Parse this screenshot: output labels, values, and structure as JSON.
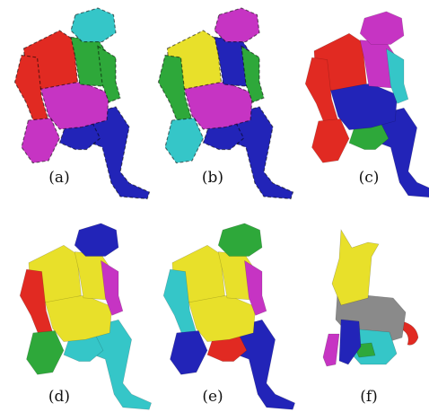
{
  "panels": [
    {
      "id": "a",
      "caption": "(a)",
      "style": "coarse-human",
      "colors": {
        "head": "#35c6c8",
        "torso_left": "#e12a22",
        "torso_right": "#2ea83a",
        "hips": "#c634c3",
        "leg": "#2224b8",
        "arm_l": "#e12a22",
        "hand_l": "#c634c3",
        "arm_r": "#2ea83a"
      }
    },
    {
      "id": "b",
      "caption": "(b)",
      "style": "coarse-human",
      "colors": {
        "head": "#c634c3",
        "torso_left": "#e8e02a",
        "torso_right": "#2224b8",
        "hips": "#c634c3",
        "leg": "#2224b8",
        "arm_l": "#2ea83a",
        "hand_l": "#35c6c8",
        "arm_r": "#2ea83a"
      }
    },
    {
      "id": "c",
      "caption": "(c)",
      "style": "smooth-human",
      "colors": {
        "head": "#c634c3",
        "torso_left": "#e12a22",
        "torso_right": "#c634c3",
        "hips": "#2224b8",
        "leg": "#2224b8",
        "arm_l": "#e12a22",
        "hand_l": "#e12a22",
        "arm_r": "#35c6c8",
        "leg_r": "#2ea83a"
      }
    },
    {
      "id": "d",
      "caption": "(d)",
      "style": "smooth-human",
      "colors": {
        "head": "#2224b8",
        "torso_left": "#e8e02a",
        "torso_right": "#e8e02a",
        "hips": "#e8e02a",
        "leg": "#35c6c8",
        "arm_l": "#e12a22",
        "hand_l": "#2ea83a",
        "arm_r": "#c634c3",
        "leg_r": "#35c6c8"
      }
    },
    {
      "id": "e",
      "caption": "(e)",
      "style": "smooth-human",
      "colors": {
        "head": "#2ea83a",
        "torso_left": "#e8e02a",
        "torso_right": "#e8e02a",
        "hips": "#e8e02a",
        "leg": "#2224b8",
        "arm_l": "#35c6c8",
        "hand_l": "#2224b8",
        "arm_r": "#c634c3",
        "leg_r": "#e12a22"
      }
    },
    {
      "id": "f",
      "caption": "(f)",
      "style": "dog",
      "colors": {
        "head": "#e8e02a",
        "body": "#8a8a8a",
        "front_leg": "#2224b8",
        "front_leg2": "#c634c3",
        "hind": "#35c6c8",
        "paw": "#2ea83a",
        "tail": "#e12a22"
      }
    }
  ]
}
